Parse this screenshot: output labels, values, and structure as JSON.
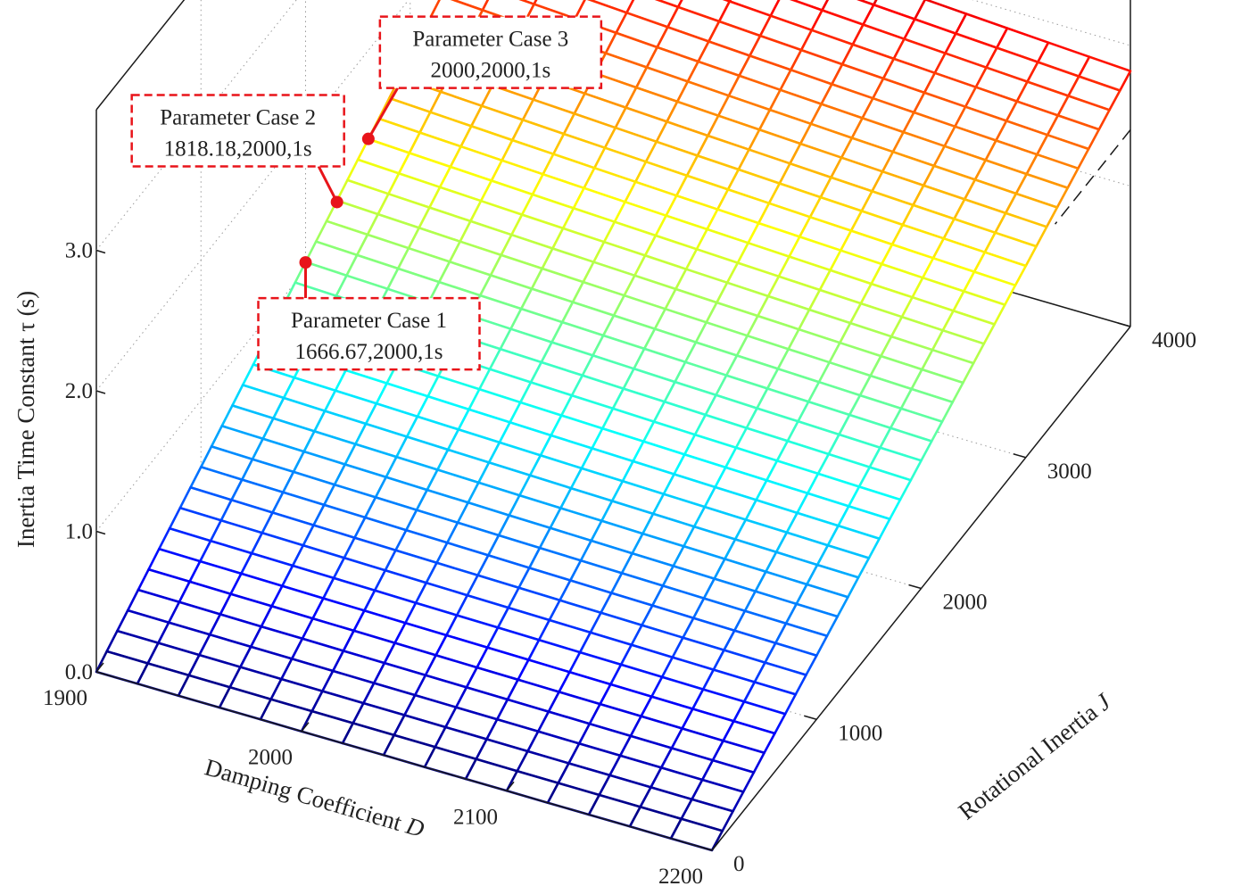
{
  "chart_data": {
    "type": "surface",
    "title": "",
    "xlabel": "Damping Coefficient",
    "xlabel_symbol": "D",
    "ylabel": "Rotational Inertia",
    "ylabel_symbol": "J",
    "zlabel": "Inertia Time Constant τ (s)",
    "xlim": [
      1900,
      2200
    ],
    "ylim": [
      0,
      4000
    ],
    "zlim": [
      0,
      3
    ],
    "x_ticks": [
      1900,
      2000,
      2100,
      2200
    ],
    "y_ticks": [
      0,
      1000,
      2000,
      3000,
      4000
    ],
    "z_ticks": [
      "0.0",
      "1.0",
      "2.0",
      "3.0"
    ],
    "surface": "tau = J / D",
    "colormap": "jet",
    "grid": true,
    "annotations": [
      {
        "title": "Parameter Case 1",
        "values": "1666.67,2000,1s",
        "point": {
          "D": 1900,
          "J": 2000,
          "tau": 1.05
        }
      },
      {
        "title": "Parameter Case 2",
        "values": "1818.18,2000,1s",
        "point": {
          "D": 1900,
          "J": 2300,
          "tau": 1.2
        }
      },
      {
        "title": "Parameter Case 3",
        "values": "2000,2000,1s",
        "point": {
          "D": 1900,
          "J": 2600,
          "tau": 1.37
        }
      }
    ],
    "annotation_color": "#e8141a"
  }
}
